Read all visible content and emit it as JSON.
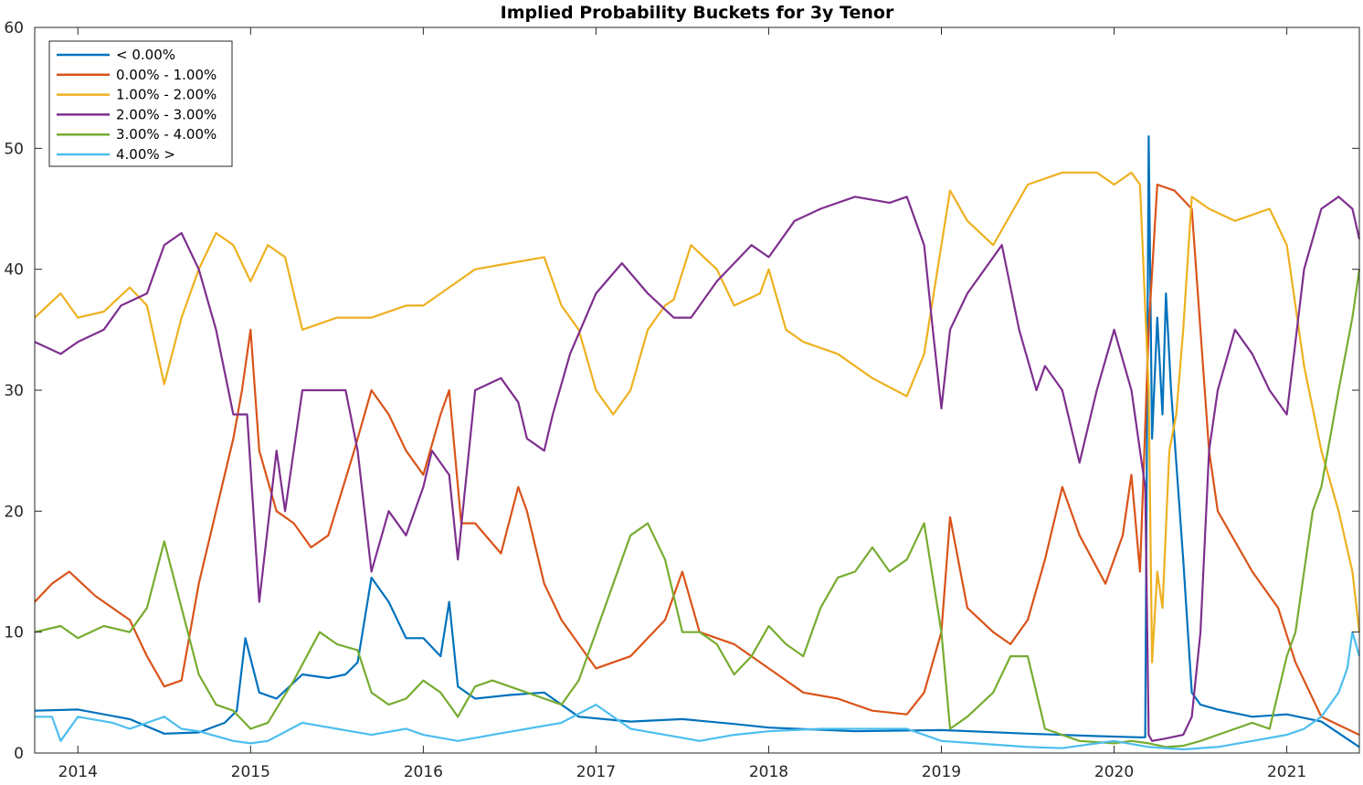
{
  "chart_data": {
    "type": "line",
    "title": "Implied Probability Buckets for 3y Tenor",
    "xlabel": "",
    "ylabel": "",
    "xlim": [
      2013.75,
      2021.42
    ],
    "ylim": [
      0,
      60
    ],
    "x_tick_values": [
      2014,
      2015,
      2016,
      2017,
      2018,
      2019,
      2020,
      2021
    ],
    "x_tick_labels": [
      "2014",
      "2015",
      "2016",
      "2017",
      "2018",
      "2019",
      "2020",
      "2021"
    ],
    "y_tick_values": [
      0,
      10,
      20,
      30,
      40,
      50,
      60
    ],
    "y_tick_labels": [
      "0",
      "10",
      "20",
      "30",
      "40",
      "50",
      "60"
    ],
    "grid": false,
    "legend_position": "top-left",
    "series": [
      {
        "name": "< 0.00%",
        "color": "#0072BD",
        "x": [
          2013.75,
          2014.0,
          2014.3,
          2014.5,
          2014.7,
          2014.85,
          2014.92,
          2014.97,
          2015.05,
          2015.15,
          2015.3,
          2015.45,
          2015.55,
          2015.62,
          2015.7,
          2015.8,
          2015.9,
          2016.0,
          2016.1,
          2016.15,
          2016.2,
          2016.3,
          2016.5,
          2016.7,
          2016.9,
          2017.2,
          2017.5,
          2017.8,
          2018.0,
          2018.5,
          2019.0,
          2019.5,
          2019.9,
          2020.15,
          2020.18,
          2020.2,
          2020.22,
          2020.25,
          2020.28,
          2020.3,
          2020.33,
          2020.37,
          2020.4,
          2020.45,
          2020.5,
          2020.6,
          2020.8,
          2021.0,
          2021.2,
          2021.42
        ],
        "y": [
          3.5,
          3.6,
          2.8,
          1.6,
          1.7,
          2.5,
          3.5,
          9.5,
          5.0,
          4.5,
          6.5,
          6.2,
          6.5,
          7.5,
          14.5,
          12.5,
          9.5,
          9.5,
          8.0,
          12.5,
          5.5,
          4.5,
          4.8,
          5.0,
          3.0,
          2.6,
          2.8,
          2.4,
          2.1,
          1.8,
          1.9,
          1.6,
          1.4,
          1.3,
          1.3,
          51.0,
          26.0,
          36.0,
          28.0,
          38.0,
          30.0,
          22.0,
          16.0,
          5.0,
          4.0,
          3.6,
          3.0,
          3.2,
          2.6,
          0.5
        ]
      },
      {
        "name": "0.00% - 1.00%",
        "color": "#D95319",
        "x": [
          2013.75,
          2013.85,
          2013.95,
          2014.1,
          2014.3,
          2014.4,
          2014.5,
          2014.6,
          2014.7,
          2014.8,
          2014.9,
          2014.95,
          2015.0,
          2015.05,
          2015.15,
          2015.25,
          2015.35,
          2015.45,
          2015.6,
          2015.7,
          2015.8,
          2015.9,
          2016.0,
          2016.1,
          2016.15,
          2016.22,
          2016.3,
          2016.45,
          2016.55,
          2016.6,
          2016.7,
          2016.8,
          2016.9,
          2017.0,
          2017.2,
          2017.4,
          2017.5,
          2017.6,
          2017.8,
          2018.0,
          2018.2,
          2018.4,
          2018.6,
          2018.8,
          2018.9,
          2019.0,
          2019.05,
          2019.15,
          2019.3,
          2019.4,
          2019.5,
          2019.6,
          2019.7,
          2019.8,
          2019.95,
          2020.05,
          2020.1,
          2020.15,
          2020.2,
          2020.25,
          2020.35,
          2020.45,
          2020.55,
          2020.6,
          2020.8,
          2020.95,
          2021.05,
          2021.2,
          2021.42
        ],
        "y": [
          12.5,
          14.0,
          15.0,
          13.0,
          11.0,
          8.0,
          5.5,
          6.0,
          14.0,
          20.0,
          26.0,
          30.0,
          35.0,
          25.0,
          20.0,
          19.0,
          17.0,
          18.0,
          25.0,
          30.0,
          28.0,
          25.0,
          23.0,
          28.0,
          30.0,
          19.0,
          19.0,
          16.5,
          22.0,
          20.0,
          14.0,
          11.0,
          9.0,
          7.0,
          8.0,
          11.0,
          15.0,
          10.0,
          9.0,
          7.0,
          5.0,
          4.5,
          3.5,
          3.2,
          5.0,
          10.0,
          19.5,
          12.0,
          10.0,
          9.0,
          11.0,
          16.0,
          22.0,
          18.0,
          14.0,
          18.0,
          23.0,
          15.0,
          35.0,
          47.0,
          46.5,
          45.0,
          25.0,
          20.0,
          15.0,
          12.0,
          7.5,
          3.0,
          1.5
        ]
      },
      {
        "name": "1.00% - 2.00%",
        "color": "#EDB120",
        "x": [
          2013.75,
          2013.9,
          2014.0,
          2014.15,
          2014.3,
          2014.4,
          2014.5,
          2014.6,
          2014.7,
          2014.8,
          2014.9,
          2015.0,
          2015.1,
          2015.2,
          2015.3,
          2015.5,
          2015.7,
          2015.9,
          2016.0,
          2016.1,
          2016.2,
          2016.3,
          2016.5,
          2016.7,
          2016.8,
          2016.9,
          2017.0,
          2017.1,
          2017.2,
          2017.3,
          2017.4,
          2017.45,
          2017.55,
          2017.7,
          2017.8,
          2017.95,
          2018.0,
          2018.1,
          2018.2,
          2018.4,
          2018.6,
          2018.8,
          2018.9,
          2019.0,
          2019.05,
          2019.15,
          2019.3,
          2019.5,
          2019.7,
          2019.9,
          2020.0,
          2020.1,
          2020.15,
          2020.2,
          2020.22,
          2020.25,
          2020.28,
          2020.32,
          2020.36,
          2020.4,
          2020.45,
          2020.55,
          2020.7,
          2020.9,
          2021.0,
          2021.1,
          2021.2,
          2021.3,
          2021.38,
          2021.42
        ],
        "y": [
          36.0,
          38.0,
          36.0,
          36.5,
          38.5,
          37.0,
          30.5,
          36.0,
          40.0,
          43.0,
          42.0,
          39.0,
          42.0,
          41.0,
          35.0,
          36.0,
          36.0,
          37.0,
          37.0,
          38.0,
          39.0,
          40.0,
          40.5,
          41.0,
          37.0,
          35.0,
          30.0,
          28.0,
          30.0,
          35.0,
          37.0,
          37.5,
          42.0,
          40.0,
          37.0,
          38.0,
          40.0,
          35.0,
          34.0,
          33.0,
          31.0,
          29.5,
          33.0,
          42.0,
          46.5,
          44.0,
          42.0,
          47.0,
          48.0,
          48.0,
          47.0,
          48.0,
          47.0,
          30.0,
          7.5,
          15.0,
          12.0,
          25.0,
          28.0,
          35.0,
          46.0,
          45.0,
          44.0,
          45.0,
          42.0,
          32.0,
          25.0,
          20.0,
          15.0,
          10.0
        ]
      },
      {
        "name": "2.00% - 3.00%",
        "color": "#7E2F8E",
        "x": [
          2013.75,
          2013.9,
          2014.0,
          2014.15,
          2014.25,
          2014.4,
          2014.5,
          2014.6,
          2014.7,
          2014.8,
          2014.9,
          2014.98,
          2015.05,
          2015.15,
          2015.2,
          2015.3,
          2015.45,
          2015.55,
          2015.62,
          2015.7,
          2015.8,
          2015.9,
          2016.0,
          2016.05,
          2016.15,
          2016.2,
          2016.3,
          2016.45,
          2016.55,
          2016.6,
          2016.7,
          2016.75,
          2016.85,
          2017.0,
          2017.15,
          2017.3,
          2017.45,
          2017.55,
          2017.7,
          2017.9,
          2018.0,
          2018.15,
          2018.3,
          2018.5,
          2018.7,
          2018.8,
          2018.9,
          2018.95,
          2019.0,
          2019.05,
          2019.15,
          2019.25,
          2019.35,
          2019.45,
          2019.55,
          2019.6,
          2019.7,
          2019.8,
          2019.9,
          2020.0,
          2020.1,
          2020.15,
          2020.18,
          2020.2,
          2020.22,
          2020.3,
          2020.4,
          2020.45,
          2020.5,
          2020.55,
          2020.6,
          2020.7,
          2020.8,
          2020.9,
          2021.0,
          2021.1,
          2021.2,
          2021.3,
          2021.38,
          2021.42
        ],
        "y": [
          34.0,
          33.0,
          34.0,
          35.0,
          37.0,
          38.0,
          42.0,
          43.0,
          40.0,
          35.0,
          28.0,
          28.0,
          12.5,
          25.0,
          20.0,
          30.0,
          30.0,
          30.0,
          25.0,
          15.0,
          20.0,
          18.0,
          22.0,
          25.0,
          23.0,
          16.0,
          30.0,
          31.0,
          29.0,
          26.0,
          25.0,
          28.0,
          33.0,
          38.0,
          40.5,
          38.0,
          36.0,
          36.0,
          39.0,
          42.0,
          41.0,
          44.0,
          45.0,
          46.0,
          45.5,
          46.0,
          42.0,
          35.0,
          28.5,
          35.0,
          38.0,
          40.0,
          42.0,
          35.0,
          30.0,
          32.0,
          30.0,
          24.0,
          30.0,
          35.0,
          30.0,
          25.0,
          22.0,
          1.5,
          1.0,
          1.2,
          1.5,
          3.0,
          10.0,
          25.0,
          30.0,
          35.0,
          33.0,
          30.0,
          28.0,
          40.0,
          45.0,
          46.0,
          45.0,
          42.5
        ]
      },
      {
        "name": "3.00% - 4.00%",
        "color": "#77AC30",
        "x": [
          2013.75,
          2013.9,
          2014.0,
          2014.15,
          2014.3,
          2014.4,
          2014.5,
          2014.6,
          2014.7,
          2014.8,
          2014.9,
          2015.0,
          2015.1,
          2015.25,
          2015.4,
          2015.5,
          2015.62,
          2015.7,
          2015.8,
          2015.9,
          2016.0,
          2016.1,
          2016.2,
          2016.3,
          2016.4,
          2016.6,
          2016.8,
          2016.9,
          2017.0,
          2017.1,
          2017.2,
          2017.3,
          2017.4,
          2017.5,
          2017.6,
          2017.7,
          2017.8,
          2017.9,
          2018.0,
          2018.1,
          2018.2,
          2018.3,
          2018.4,
          2018.5,
          2018.6,
          2018.7,
          2018.8,
          2018.9,
          2019.0,
          2019.05,
          2019.15,
          2019.3,
          2019.4,
          2019.5,
          2019.6,
          2019.8,
          2020.0,
          2020.1,
          2020.2,
          2020.3,
          2020.4,
          2020.5,
          2020.6,
          2020.7,
          2020.8,
          2020.9,
          2021.0,
          2021.05,
          2021.1,
          2021.15,
          2021.2,
          2021.3,
          2021.38,
          2021.42
        ],
        "y": [
          10.0,
          10.5,
          9.5,
          10.5,
          10.0,
          12.0,
          17.5,
          12.0,
          6.5,
          4.0,
          3.5,
          2.0,
          2.5,
          6.0,
          10.0,
          9.0,
          8.5,
          5.0,
          4.0,
          4.5,
          6.0,
          5.0,
          3.0,
          5.5,
          6.0,
          5.0,
          4.0,
          6.0,
          10.0,
          14.0,
          18.0,
          19.0,
          16.0,
          10.0,
          10.0,
          9.0,
          6.5,
          8.0,
          10.5,
          9.0,
          8.0,
          12.0,
          14.5,
          15.0,
          17.0,
          15.0,
          16.0,
          19.0,
          10.0,
          2.0,
          3.0,
          5.0,
          8.0,
          8.0,
          2.0,
          1.0,
          0.8,
          1.0,
          0.8,
          0.5,
          0.6,
          1.0,
          1.5,
          2.0,
          2.5,
          2.0,
          8.0,
          10.0,
          15.0,
          20.0,
          22.0,
          30.0,
          36.0,
          40.0
        ]
      },
      {
        "name": "4.00% >",
        "color": "#4DBEEE",
        "x": [
          2013.75,
          2013.85,
          2013.9,
          2014.0,
          2014.2,
          2014.3,
          2014.5,
          2014.6,
          2014.7,
          2014.9,
          2015.0,
          2015.1,
          2015.3,
          2015.5,
          2015.7,
          2015.9,
          2016.0,
          2016.2,
          2016.4,
          2016.6,
          2016.8,
          2017.0,
          2017.2,
          2017.4,
          2017.6,
          2017.8,
          2018.0,
          2018.3,
          2018.6,
          2018.8,
          2019.0,
          2019.2,
          2019.5,
          2019.7,
          2019.9,
          2020.0,
          2020.2,
          2020.4,
          2020.6,
          2020.8,
          2021.0,
          2021.1,
          2021.2,
          2021.3,
          2021.35,
          2021.38,
          2021.42
        ],
        "y": [
          3.0,
          3.0,
          1.0,
          3.0,
          2.5,
          2.0,
          3.0,
          2.0,
          1.8,
          1.0,
          0.8,
          1.0,
          2.5,
          2.0,
          1.5,
          2.0,
          1.5,
          1.0,
          1.5,
          2.0,
          2.5,
          4.0,
          2.0,
          1.5,
          1.0,
          1.5,
          1.8,
          2.0,
          2.0,
          2.0,
          1.0,
          0.8,
          0.5,
          0.4,
          0.8,
          1.0,
          0.5,
          0.3,
          0.5,
          1.0,
          1.5,
          2.0,
          3.0,
          5.0,
          7.0,
          10.0,
          8.0
        ]
      }
    ]
  }
}
